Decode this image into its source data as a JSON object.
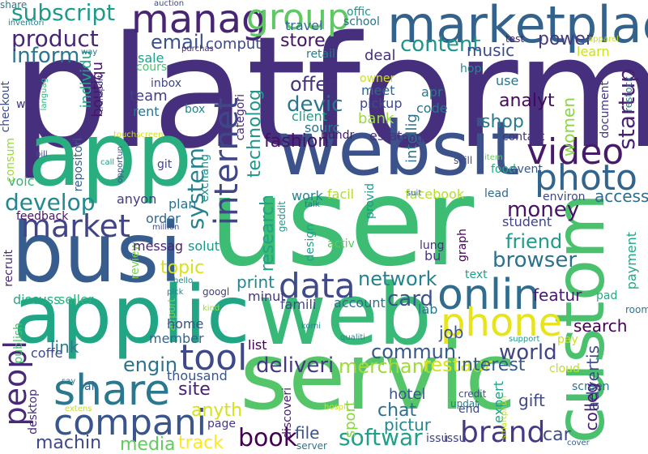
{
  "words": [
    {
      "text": "platform",
      "color": "#46307e"
    },
    {
      "text": "user",
      "color": "#3dbc74"
    },
    {
      "text": "servic",
      "color": "#54c568"
    },
    {
      "text": "websit",
      "color": "#3b528b"
    },
    {
      "text": "app",
      "color": "#29af7f"
    },
    {
      "text": "busi",
      "color": "#365d8d"
    },
    {
      "text": "applic",
      "color": "#21a685"
    },
    {
      "text": "web",
      "color": "#38b977"
    },
    {
      "text": "custom",
      "color": "#4ac16d"
    },
    {
      "text": "marketplac",
      "color": "#33638d"
    },
    {
      "text": "onlin",
      "color": "#2f6c8e"
    },
    {
      "text": "share",
      "color": "#2a788e"
    },
    {
      "text": "compani",
      "color": "#39558c"
    },
    {
      "text": "data",
      "color": "#3e4a89"
    },
    {
      "text": "tool",
      "color": "#3e4989"
    },
    {
      "text": "video",
      "color": "#481a6c"
    },
    {
      "text": "photo",
      "color": "#32658e"
    },
    {
      "text": "phone",
      "color": "#e7e419"
    },
    {
      "text": "internet",
      "color": "#3f4788"
    },
    {
      "text": "peopl",
      "color": "#482878"
    },
    {
      "text": "market",
      "color": "#414487"
    },
    {
      "text": "manag",
      "color": "#482475"
    },
    {
      "text": "group",
      "color": "#5ec962"
    },
    {
      "text": "brand",
      "color": "#443983"
    },
    {
      "text": "develop",
      "color": "#23888e"
    },
    {
      "text": "subscript",
      "color": "#1f9a8a"
    },
    {
      "text": "product",
      "color": "#482576"
    },
    {
      "text": "inform",
      "color": "#2a768e"
    },
    {
      "text": "email",
      "color": "#3b518b"
    },
    {
      "text": "content",
      "color": "#1f958b"
    },
    {
      "text": "system",
      "color": "#26828e"
    },
    {
      "text": "startup",
      "color": "#482173"
    },
    {
      "text": "technolog",
      "color": "#1f988b"
    },
    {
      "text": "research",
      "color": "#20a386"
    },
    {
      "text": "share2",
      "color": "#2a788e"
    },
    {
      "text": "store",
      "color": "#471365"
    },
    {
      "text": "offer",
      "color": "#46337e"
    },
    {
      "text": "devic",
      "color": "#2a768e"
    },
    {
      "text": "fashion",
      "color": "#471063"
    },
    {
      "text": "book",
      "color": "#440154"
    },
    {
      "text": "softwar",
      "color": "#1fa088"
    },
    {
      "text": "card",
      "color": "#3b528b"
    },
    {
      "text": "network",
      "color": "#26828e"
    },
    {
      "text": "browser",
      "color": "#2d718e"
    },
    {
      "text": "friend",
      "color": "#1e9b8a"
    },
    {
      "text": "money",
      "color": "#471365"
    },
    {
      "text": "commun",
      "color": "#38588c"
    },
    {
      "text": "world",
      "color": "#404588"
    },
    {
      "text": "deliveri",
      "color": "#453882"
    },
    {
      "text": "merchant",
      "color": "#9fda3a"
    },
    {
      "text": "restaur",
      "color": "#d8e219"
    },
    {
      "text": "track",
      "color": "#fde725"
    },
    {
      "text": "media",
      "color": "#65cb5e"
    },
    {
      "text": "machin",
      "color": "#3e4989"
    },
    {
      "text": "engin",
      "color": "#2c728e"
    },
    {
      "text": "site",
      "color": "#482173"
    },
    {
      "text": "anyth",
      "color": "#d5e21a"
    },
    {
      "text": "link",
      "color": "#287c8e"
    },
    {
      "text": "topic",
      "color": "#d8e219"
    },
    {
      "text": "music",
      "color": "#3f4889"
    },
    {
      "text": "power",
      "color": "#443a83"
    },
    {
      "text": "shop",
      "color": "#29798e"
    },
    {
      "text": "analyt",
      "color": "#46085c"
    },
    {
      "text": "job",
      "color": "#3b528b"
    },
    {
      "text": "car",
      "color": "#3e4a89"
    },
    {
      "text": "print",
      "color": "#25848e"
    },
    {
      "text": "chat",
      "color": "#2d708e"
    },
    {
      "text": "hotel",
      "color": "#39568c"
    },
    {
      "text": "pictur",
      "color": "#24878e"
    },
    {
      "text": "file",
      "color": "#3b528b"
    },
    {
      "text": "gift",
      "color": "#3f4788"
    },
    {
      "text": "featur",
      "color": "#481b6d"
    },
    {
      "text": "interest",
      "color": "#365c8d"
    },
    {
      "text": "search",
      "color": "#440154"
    },
    {
      "text": "women",
      "color": "#8bd646"
    },
    {
      "text": "access",
      "color": "#2e6d8e"
    },
    {
      "text": "team",
      "color": "#433e85"
    },
    {
      "text": "sale",
      "color": "#1fa088"
    },
    {
      "text": "rent",
      "color": "#2d718e"
    },
    {
      "text": "box",
      "color": "#24868e"
    },
    {
      "text": "inbox",
      "color": "#3f4889"
    },
    {
      "text": "boutiqu",
      "color": "#481467"
    },
    {
      "text": "individu",
      "color": "#22a884"
    },
    {
      "text": "repositori",
      "color": "#365c8d"
    },
    {
      "text": "checkout",
      "color": "#3d4e8a"
    },
    {
      "text": "wiki",
      "color": "#46337e"
    },
    {
      "text": "languag",
      "color": "#2fb47c"
    },
    {
      "text": "transport",
      "color": "#443983"
    },
    {
      "text": "categori",
      "color": "#482878"
    },
    {
      "text": "meet",
      "color": "#31668e"
    },
    {
      "text": "pickup",
      "color": "#3e4a89"
    },
    {
      "text": "client",
      "color": "#1f9e89"
    },
    {
      "text": "sourc",
      "color": "#2c738e"
    },
    {
      "text": "code",
      "color": "#2c728e"
    },
    {
      "text": "owner",
      "color": "#d0e11c"
    },
    {
      "text": "deal",
      "color": "#46307e"
    },
    {
      "text": "retail",
      "color": "#297b8e"
    },
    {
      "text": "travel",
      "color": "#31678e"
    },
    {
      "text": "school",
      "color": "#2d708e"
    },
    {
      "text": "offic",
      "color": "#1f968b"
    },
    {
      "text": "comput",
      "color": "#3e4989"
    },
    {
      "text": "cours",
      "color": "#4ac16d"
    },
    {
      "text": "purchas",
      "color": "#472c7a"
    },
    {
      "text": "test",
      "color": "#481f70"
    },
    {
      "text": "learn",
      "color": "#cae11f"
    },
    {
      "text": "way",
      "color": "#2c728e"
    },
    {
      "text": "apparel",
      "color": "#c2df23"
    },
    {
      "text": "restock",
      "color": "#2a778e"
    },
    {
      "text": "hop",
      "color": "#23888e"
    },
    {
      "text": "use",
      "color": "#2c738e"
    },
    {
      "text": "apr",
      "color": "#2a768e"
    },
    {
      "text": "bank",
      "color": "#9bd93c"
    },
    {
      "text": "intellig",
      "color": "#2d718e"
    },
    {
      "text": "estat",
      "color": "#46337e"
    },
    {
      "text": "notif",
      "color": "#472d7b"
    },
    {
      "text": "hundr",
      "color": "#481668"
    },
    {
      "text": "document",
      "color": "#453781"
    },
    {
      "text": "contact",
      "color": "#46327e"
    },
    {
      "text": "food",
      "color": "#25ac82"
    },
    {
      "text": "event",
      "color": "#39568c"
    },
    {
      "text": "item",
      "color": "#6ccd5a"
    },
    {
      "text": "skill",
      "color": "#404588"
    },
    {
      "text": "environ",
      "color": "#3e4989"
    },
    {
      "text": "facebook",
      "color": "#b5de2b"
    },
    {
      "text": "lead",
      "color": "#306a8e"
    },
    {
      "text": "facil",
      "color": "#addc30"
    },
    {
      "text": "provid",
      "color": "#1f998a"
    },
    {
      "text": "work",
      "color": "#25848e"
    },
    {
      "text": "talk",
      "color": "#2e6f8e"
    },
    {
      "text": "geddit",
      "color": "#1f9a8a"
    },
    {
      "text": "suit",
      "color": "#34608d"
    },
    {
      "text": "graph",
      "color": "#440154"
    },
    {
      "text": "student",
      "color": "#414487"
    },
    {
      "text": "design",
      "color": "#1fa287"
    },
    {
      "text": "activ",
      "color": "#5ec962"
    },
    {
      "text": "lung",
      "color": "#46307e"
    },
    {
      "text": "bu",
      "color": "#453882"
    },
    {
      "text": "text",
      "color": "#1fa187"
    },
    {
      "text": "payment",
      "color": "#22a785"
    },
    {
      "text": "famili",
      "color": "#3f4889"
    },
    {
      "text": "account",
      "color": "#2e6d8e"
    },
    {
      "text": "lab",
      "color": "#2a788e"
    },
    {
      "text": "minut",
      "color": "#453781"
    },
    {
      "text": "list",
      "color": "#440154"
    },
    {
      "text": "pad",
      "color": "#22a884"
    },
    {
      "text": "room",
      "color": "#2a788e"
    },
    {
      "text": "pay",
      "color": "#c5e021"
    },
    {
      "text": "cloud",
      "color": "#bddf26"
    },
    {
      "text": "support",
      "color": "#1f9a8a"
    },
    {
      "text": "advertis",
      "color": "#3e4c8a"
    },
    {
      "text": "screen",
      "color": "#2c738e"
    },
    {
      "text": "colleg",
      "color": "#481c6e"
    },
    {
      "text": "expert",
      "color": "#1fa088"
    },
    {
      "text": "credit",
      "color": "#3d4d8a"
    },
    {
      "text": "smartphon",
      "color": "#bddf26"
    },
    {
      "text": "updat",
      "color": "#277e8e"
    },
    {
      "text": "end",
      "color": "#3e4989"
    },
    {
      "text": "issu",
      "color": "#414487"
    },
    {
      "text": "cover",
      "color": "#365c8d"
    },
    {
      "text": "server",
      "color": "#2b758e"
    },
    {
      "text": "discoveri",
      "color": "#482071"
    },
    {
      "text": "hospit",
      "color": "#d2e21b"
    },
    {
      "text": "sport",
      "color": "#8bd646"
    },
    {
      "text": "qualiti",
      "color": "#23898e"
    },
    {
      "text": "komi",
      "color": "#25848e"
    },
    {
      "text": "kind",
      "color": "#a2da37"
    },
    {
      "text": "googl",
      "color": "#433e85"
    },
    {
      "text": "airport",
      "color": "#7ad151"
    },
    {
      "text": "pick",
      "color": "#26818e"
    },
    {
      "text": "hello",
      "color": "#26828e"
    },
    {
      "text": "review",
      "color": "#7ad151"
    },
    {
      "text": "home",
      "color": "#3b528b"
    },
    {
      "text": "member",
      "color": "#32658e"
    },
    {
      "text": "thousand",
      "color": "#3a548c"
    },
    {
      "text": "al",
      "color": "#34608d"
    },
    {
      "text": "page",
      "color": "#453882"
    },
    {
      "text": "extens",
      "color": "#c2df23"
    },
    {
      "text": "say",
      "color": "#2a788e"
    },
    {
      "text": "coffe",
      "color": "#3e4a89"
    },
    {
      "text": "desktop",
      "color": "#472c7a"
    },
    {
      "text": "publish",
      "color": "#4ac16d"
    },
    {
      "text": "discuss",
      "color": "#25ab82"
    },
    {
      "text": "seller",
      "color": "#2fb47c"
    },
    {
      "text": "recruit",
      "color": "#482878"
    },
    {
      "text": "feedback",
      "color": "#481769"
    },
    {
      "text": "voic",
      "color": "#32b67a"
    },
    {
      "text": "consum",
      "color": "#9bd93c"
    },
    {
      "text": "bill",
      "color": "#3f4889"
    },
    {
      "text": "call",
      "color": "#1f9e89"
    },
    {
      "text": "opportun",
      "color": "#3b528b"
    },
    {
      "text": "git",
      "color": "#404688"
    },
    {
      "text": "exchang",
      "color": "#20928c"
    },
    {
      "text": "plan",
      "color": "#2d708e"
    },
    {
      "text": "anyon",
      "color": "#443983"
    },
    {
      "text": "million",
      "color": "#3f4889"
    },
    {
      "text": "order",
      "color": "#31678e"
    },
    {
      "text": "messag",
      "color": "#482475"
    },
    {
      "text": "solut",
      "color": "#1f958b"
    },
    {
      "text": "touchscreen",
      "color": "#d0e11c"
    },
    {
      "text": "auction",
      "color": "#3e4a89"
    },
    {
      "text": "inventori",
      "color": "#287c8e"
    },
    {
      "text": "issu2",
      "color": "#414487"
    }
  ]
}
